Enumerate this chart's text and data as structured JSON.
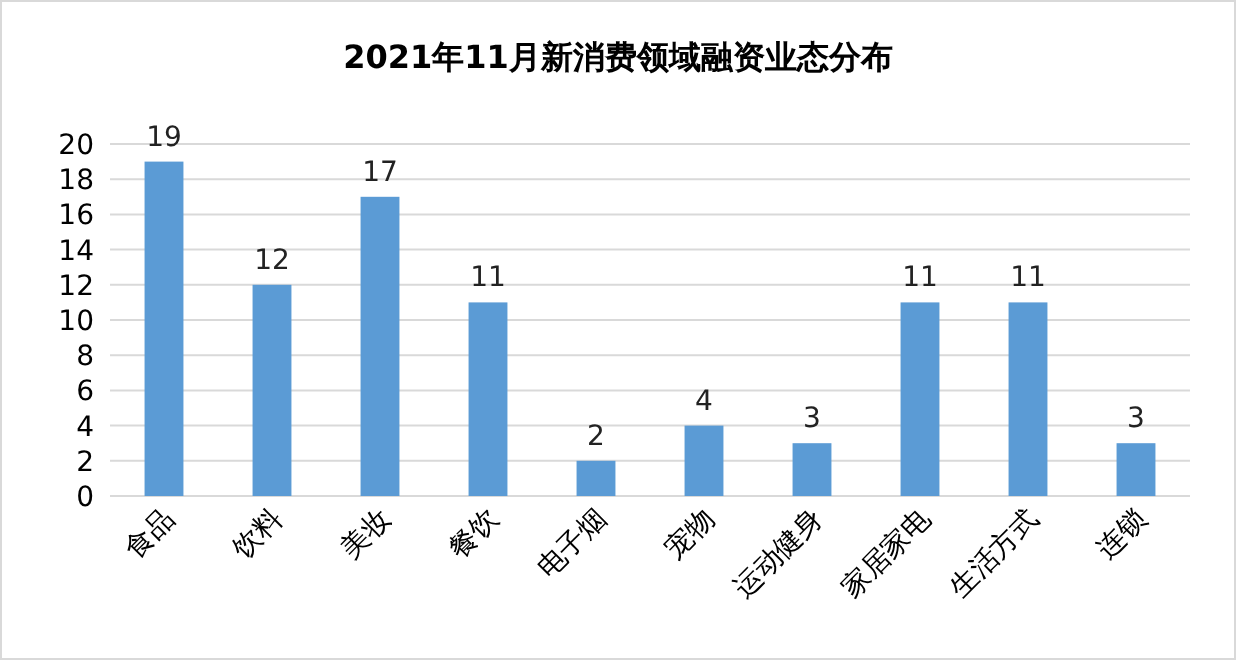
{
  "chart_data": {
    "type": "bar",
    "title": "2021年11月新消费领域融资业态分布",
    "categories": [
      "食品",
      "饮料",
      "美妆",
      "餐饮",
      "电子烟",
      "宠物",
      "运动健身",
      "家居家电",
      "生活方式",
      "连锁"
    ],
    "values": [
      19,
      12,
      17,
      11,
      2,
      4,
      3,
      11,
      11,
      3
    ],
    "color": "#5b9bd5",
    "ylim": [
      0,
      20
    ],
    "yticks": [
      0,
      2,
      4,
      6,
      8,
      10,
      12,
      14,
      16,
      18,
      20
    ],
    "grid": "y",
    "data_labels": true
  }
}
